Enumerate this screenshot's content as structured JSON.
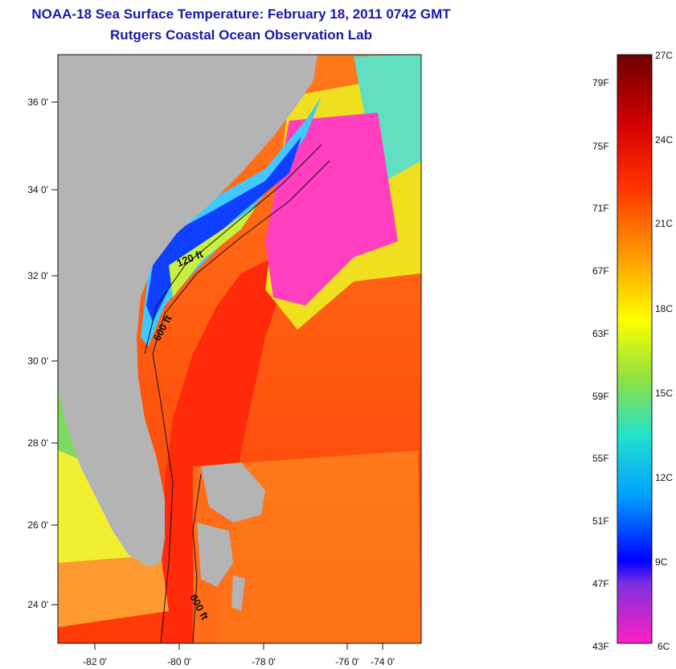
{
  "header": {
    "title": "NOAA-18 Sea Surface Temperature:  February 18, 2011 0742 GMT",
    "subtitle": "Rutgers Coastal Ocean Observation Lab"
  },
  "map": {
    "lon_labels": [
      "-82 0'",
      "-80 0'",
      "-78 0'",
      "-76 0'",
      "-74 0'"
    ],
    "lat_labels": [
      "36 0'",
      "34 0'",
      "32 0'",
      "30 0'",
      "28 0'",
      "26 0'",
      "24 0'"
    ],
    "contour_labels": [
      "120 ft",
      "600 ft",
      "600 ft"
    ],
    "land_color": "#b4b4b4"
  },
  "colorbar": {
    "fahrenheit": [
      "79F",
      "75F",
      "71F",
      "67F",
      "63F",
      "59F",
      "55F",
      "51F",
      "47F",
      "43F"
    ],
    "celsius": [
      "27C",
      "24C",
      "21C",
      "18C",
      "15C",
      "12C",
      "9C",
      "6C"
    ]
  }
}
